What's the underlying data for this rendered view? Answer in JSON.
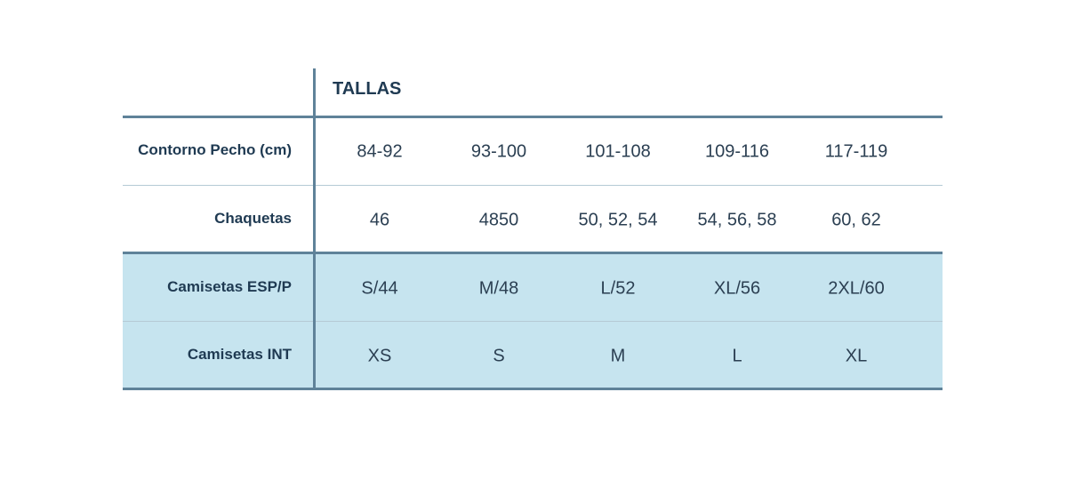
{
  "table": {
    "title": "TALLAS",
    "rows": [
      {
        "label": "Contorno Pecho (cm)",
        "cells": [
          "84-92",
          "93-100",
          "101-108",
          "109-116",
          "117-119"
        ]
      },
      {
        "label": "Chaquetas",
        "cells": [
          "46",
          "4850",
          "50, 52, 54",
          "54, 56, 58",
          "60, 62"
        ]
      },
      {
        "label": "Camisetas ESP/P",
        "cells": [
          "S/44",
          "M/48",
          "L/52",
          "XL/56",
          "2XL/60"
        ]
      },
      {
        "label": "Camisetas INT",
        "cells": [
          "XS",
          "S",
          "M",
          "L",
          "XL"
        ]
      }
    ]
  }
}
